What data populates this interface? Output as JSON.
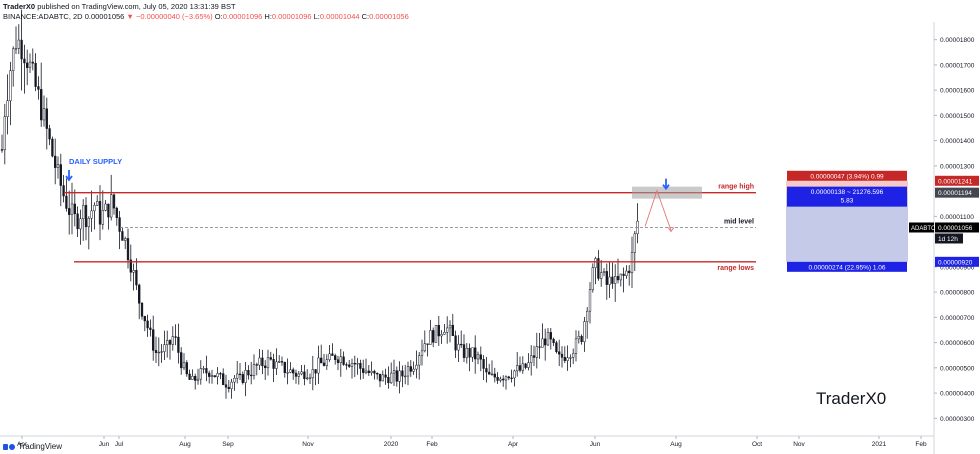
{
  "header": {
    "author": "TraderX0",
    "published_text": "published on TradingView.com, July 05, 2020 13:31:39 BST",
    "symbol": "BINANCE:ADABTC, 2D",
    "last": "0.00001056",
    "change": "−0.00000040 (−3.65%)",
    "o_label": "O:",
    "o_value": "0.00001096",
    "h_label": "H:",
    "h_value": "0.00001096",
    "l_label": "L:",
    "l_value": "0.00001044",
    "c_label": "C:",
    "c_value": "0.00001056"
  },
  "footer": {
    "brand": "TradingView"
  },
  "colors": {
    "up": "#26a69a",
    "candle": "#131722",
    "level_line": "#c62828",
    "mid_line": "#787b86",
    "annotation_blue": "#2962ff",
    "tp_fill": "#c5cae9",
    "sl_fill": "#f8c9c9",
    "sl_label": "#c62828",
    "tp_label": "#1e22e5",
    "current_label": "#000000"
  },
  "chart_data": {
    "type": "candlestick",
    "watermark": "TraderX0",
    "x_ticks": [
      "Apr",
      "Jun",
      "Jul",
      "Aug",
      "Sep",
      "Nov",
      "2020",
      "Feb",
      "Apr",
      "Jun",
      "Aug",
      "Oct",
      "Nov",
      "2021",
      "Feb"
    ],
    "x_tick_positions": [
      22,
      104,
      119,
      185,
      228,
      308,
      391,
      432,
      513,
      595,
      676,
      757,
      799,
      879,
      921
    ],
    "y_ticks": [
      1.8e-05,
      1.7e-05,
      1.6e-05,
      1.5e-05,
      1.4e-05,
      1.3e-05,
      1.1e-05,
      9e-06,
      8e-06,
      7e-06,
      6e-06,
      5e-06,
      4e-06,
      3e-06
    ],
    "y_tick_labels": [
      "0.00001800",
      "0.00001700",
      "0.00001600",
      "0.00001500",
      "0.00001400",
      "0.00001300",
      "0.00001100",
      "0.00000900",
      "0.00000800",
      "0.00000700",
      "0.00000600",
      "0.00000500",
      "0.00000400",
      "0.00000300"
    ],
    "ylim": [
      2.3e-06,
      1.87e-05
    ],
    "price_path": [
      [
        0,
        1.23
      ],
      [
        4,
        1.5
      ],
      [
        10,
        1.68
      ],
      [
        16,
        1.8
      ],
      [
        22,
        1.78
      ],
      [
        28,
        1.72
      ],
      [
        34,
        1.63
      ],
      [
        40,
        1.55
      ],
      [
        46,
        1.45
      ],
      [
        52,
        1.35
      ],
      [
        58,
        1.26
      ],
      [
        64,
        1.18
      ],
      [
        70,
        1.12
      ],
      [
        76,
        1.08
      ],
      [
        82,
        1.13
      ],
      [
        88,
        1.09
      ],
      [
        94,
        1.15
      ],
      [
        100,
        1.1
      ],
      [
        106,
        1.12
      ],
      [
        112,
        1.16
      ],
      [
        118,
        1.08
      ],
      [
        124,
        1.02
      ],
      [
        128,
        0.96
      ],
      [
        132,
        0.9
      ],
      [
        138,
        0.78
      ],
      [
        144,
        0.71
      ],
      [
        150,
        0.63
      ],
      [
        156,
        0.56
      ],
      [
        162,
        0.57
      ],
      [
        168,
        0.58
      ],
      [
        174,
        0.63
      ],
      [
        180,
        0.54
      ],
      [
        186,
        0.47
      ],
      [
        192,
        0.44
      ],
      [
        198,
        0.47
      ],
      [
        204,
        0.48
      ],
      [
        210,
        0.49
      ],
      [
        216,
        0.47
      ],
      [
        222,
        0.45
      ],
      [
        228,
        0.44
      ],
      [
        234,
        0.46
      ],
      [
        240,
        0.45
      ],
      [
        246,
        0.48
      ],
      [
        252,
        0.49
      ],
      [
        258,
        0.51
      ],
      [
        264,
        0.52
      ],
      [
        270,
        0.53
      ],
      [
        276,
        0.51
      ],
      [
        282,
        0.5
      ],
      [
        288,
        0.49
      ],
      [
        294,
        0.48
      ],
      [
        300,
        0.47
      ],
      [
        306,
        0.49
      ],
      [
        312,
        0.48
      ],
      [
        318,
        0.51
      ],
      [
        324,
        0.52
      ],
      [
        330,
        0.53
      ],
      [
        336,
        0.55
      ],
      [
        342,
        0.54
      ],
      [
        348,
        0.53
      ],
      [
        354,
        0.52
      ],
      [
        360,
        0.5
      ],
      [
        366,
        0.49
      ],
      [
        372,
        0.47
      ],
      [
        378,
        0.46
      ],
      [
        384,
        0.46
      ],
      [
        390,
        0.47
      ],
      [
        396,
        0.46
      ],
      [
        402,
        0.47
      ],
      [
        408,
        0.5
      ],
      [
        414,
        0.52
      ],
      [
        420,
        0.57
      ],
      [
        426,
        0.61
      ],
      [
        432,
        0.63
      ],
      [
        438,
        0.64
      ],
      [
        444,
        0.67
      ],
      [
        450,
        0.64
      ],
      [
        456,
        0.59
      ],
      [
        462,
        0.56
      ],
      [
        468,
        0.56
      ],
      [
        474,
        0.55
      ],
      [
        480,
        0.53
      ],
      [
        486,
        0.47
      ],
      [
        492,
        0.46
      ],
      [
        498,
        0.47
      ],
      [
        504,
        0.47
      ],
      [
        510,
        0.48
      ],
      [
        516,
        0.49
      ],
      [
        522,
        0.49
      ],
      [
        528,
        0.51
      ],
      [
        534,
        0.55
      ],
      [
        540,
        0.59
      ],
      [
        546,
        0.62
      ],
      [
        552,
        0.59
      ],
      [
        558,
        0.53
      ],
      [
        564,
        0.55
      ],
      [
        570,
        0.57
      ],
      [
        576,
        0.59
      ],
      [
        582,
        0.63
      ],
      [
        588,
        0.78
      ],
      [
        592,
        0.86
      ],
      [
        596,
        0.9
      ],
      [
        600,
        0.88
      ],
      [
        604,
        0.85
      ],
      [
        608,
        0.82
      ],
      [
        612,
        0.87
      ],
      [
        616,
        0.82
      ],
      [
        620,
        0.85
      ],
      [
        624,
        0.86
      ],
      [
        628,
        0.89
      ],
      [
        632,
        0.94
      ],
      [
        635,
        1.02
      ],
      [
        638,
        1.09
      ],
      [
        640,
        1.056
      ]
    ],
    "levels": [
      {
        "label": "range high",
        "value": 1.194e-05
      },
      {
        "label": "mid level",
        "value": 1.056e-05
      },
      {
        "label": "range lows",
        "value": 9.2e-06
      }
    ],
    "annotation": "DAILY SUPPLY",
    "position_tool": {
      "stop_label": "0.00000047 (3.94%) 0.99",
      "entry_label": "0.00000138 ~ 21276.596",
      "entry_sub": "5.83",
      "target_label": "0.00000274 (22.95%) 1.06",
      "stop_price": "0.00001241",
      "entry_price": "0.00001194",
      "target_price": "0.00000920",
      "stop_value": 1.241e-05,
      "entry_value": 1.194e-05,
      "target_value": 9.2e-06
    },
    "current": {
      "symbol": "ADABTC",
      "price": "0.00001056",
      "countdown": "1d 12h",
      "value": 1.056e-05
    }
  }
}
